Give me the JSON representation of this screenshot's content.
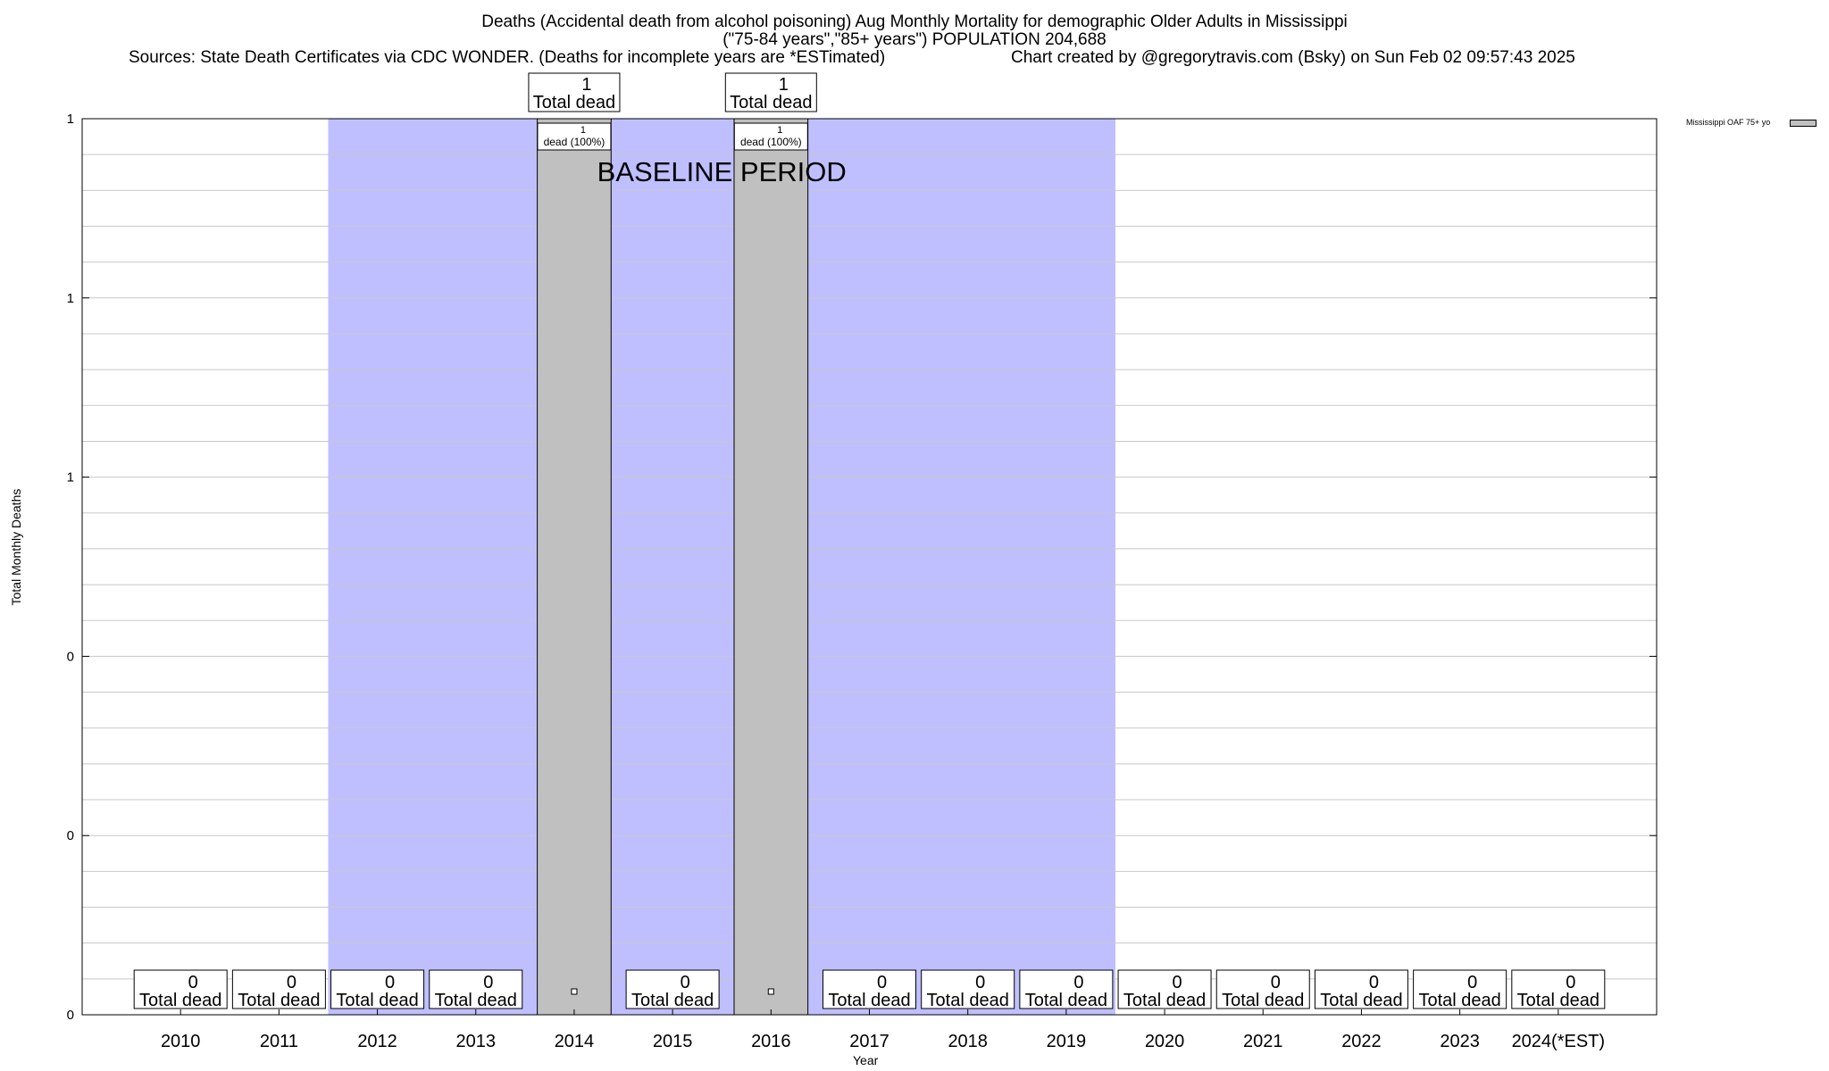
{
  "header": {
    "title_line1": "Deaths (Accidental death from alcohol poisoning) Aug Monthly Mortality for demographic Older Adults in Mississippi",
    "title_line2": "(\"75-84 years\",\"85+ years\") POPULATION 204,688",
    "sources": "Sources: State Death Certificates via CDC WONDER. (Deaths for incomplete years are *ESTimated)",
    "credit": "Chart created by @gregorytravis.com (Bsky) on Sun Feb 02 09:57:43 2025"
  },
  "colors": {
    "bar": "#c0c0c0",
    "baseline_shade": "#bfbfff",
    "grid": "#c8c8c8"
  },
  "chart_data": {
    "type": "bar",
    "xlabel": "Year",
    "ylabel": "Total Monthly Deaths",
    "categories": [
      "2010",
      "2011",
      "2012",
      "2013",
      "2014",
      "2015",
      "2016",
      "2017",
      "2018",
      "2019",
      "2020",
      "2021",
      "2022",
      "2023",
      "2024(*EST)"
    ],
    "series": [
      {
        "name": "Mississippi OAF 75+ yo",
        "values": [
          0,
          0,
          0,
          0,
          1,
          0,
          1,
          0,
          0,
          0,
          0,
          0,
          0,
          0,
          0
        ]
      }
    ],
    "ylim": [
      0,
      1
    ],
    "y_tick_labels": [
      "0",
      "0",
      "0",
      "1",
      "1",
      "1"
    ],
    "y_tick_values": [
      0,
      0.2,
      0.4,
      0.6,
      0.8,
      1.0
    ],
    "top_labels": [
      {
        "index": 4,
        "value": "1",
        "text": "Total dead"
      },
      {
        "index": 6,
        "value": "1",
        "text": "Total dead"
      }
    ],
    "inner_labels": [
      {
        "index": 4,
        "value": "1",
        "text": "dead (100%)"
      },
      {
        "index": 6,
        "value": "1",
        "text": "dead (100%)"
      }
    ],
    "zero_label_value": "0",
    "zero_label_text": "Total dead",
    "baseline_period": {
      "label": "BASELINE PERIOD",
      "from": "2012",
      "to": "2019"
    },
    "grid": true,
    "legend_position": "top-right"
  }
}
